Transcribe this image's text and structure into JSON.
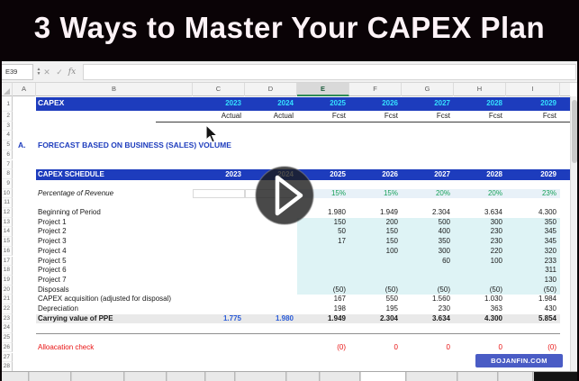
{
  "video": {
    "title": "3 Ways to Master Your CAPEX Plan"
  },
  "formula_bar": {
    "name_box": "E39",
    "icons": {
      "cancel": "✕",
      "enter": "✓",
      "fx": "fx"
    },
    "formula_value": ""
  },
  "columns": {
    "headers": [
      "A",
      "B",
      "C",
      "D",
      "E",
      "F",
      "G",
      "H",
      "I"
    ],
    "selected": "E"
  },
  "sheet": {
    "row_count": 28,
    "years": [
      "2023",
      "2024",
      "2025",
      "2026",
      "2027",
      "2028",
      "2029"
    ],
    "banner": {
      "label": "CAPEX"
    },
    "subheader": [
      "Actual",
      "Actual",
      "Fcst",
      "Fcst",
      "Fcst",
      "Fcst",
      "Fcst"
    ],
    "section": {
      "index": "A.",
      "title": "FORECAST BASED ON BUSINESS (SALES) VOLUME"
    },
    "schedule_banner": {
      "label": "CAPEX SCHEDULE"
    },
    "rows": [
      {
        "row": 10,
        "style": "pct",
        "label": "Percentage of Revenue",
        "values": [
          "",
          "",
          "15%",
          "15%",
          "20%",
          "20%",
          "23%"
        ]
      },
      {
        "row": 12,
        "style": "plain",
        "label": "Beginning of Period",
        "values": [
          "",
          "",
          "1.980",
          "1.949",
          "2.304",
          "3.634",
          "4.300"
        ]
      },
      {
        "row": 13,
        "style": "cyan",
        "label": "Project 1",
        "values": [
          "",
          "",
          "150",
          "200",
          "500",
          "300",
          "350"
        ]
      },
      {
        "row": 14,
        "style": "cyan",
        "label": "Project 2",
        "values": [
          "",
          "",
          "50",
          "150",
          "400",
          "230",
          "345"
        ]
      },
      {
        "row": 15,
        "style": "cyan",
        "label": "Project 3",
        "values": [
          "",
          "",
          "17",
          "150",
          "350",
          "230",
          "345"
        ]
      },
      {
        "row": 16,
        "style": "cyan",
        "label": "Project 4",
        "values": [
          "",
          "",
          "",
          "100",
          "300",
          "220",
          "320"
        ]
      },
      {
        "row": 17,
        "style": "cyan",
        "label": "Project 5",
        "values": [
          "",
          "",
          "",
          "",
          "60",
          "100",
          "233"
        ]
      },
      {
        "row": 18,
        "style": "cyan",
        "label": "Project 6",
        "values": [
          "",
          "",
          "",
          "",
          "",
          "",
          "311"
        ]
      },
      {
        "row": 19,
        "style": "cyan",
        "label": "Project 7",
        "values": [
          "",
          "",
          "",
          "",
          "",
          "",
          "130"
        ]
      },
      {
        "row": 20,
        "style": "cyan",
        "label": "Disposals",
        "values": [
          "",
          "",
          "(50)",
          "(50)",
          "(50)",
          "(50)",
          "(50)"
        ]
      },
      {
        "row": 21,
        "style": "plain",
        "label": "CAPEX acquisition (adjusted for disposal)",
        "values": [
          "",
          "",
          "167",
          "550",
          "1.560",
          "1.030",
          "1.984"
        ]
      },
      {
        "row": 22,
        "style": "plain",
        "label": "Depreciation",
        "values": [
          "",
          "",
          "198",
          "195",
          "230",
          "363",
          "430"
        ]
      },
      {
        "row": 23,
        "style": "total",
        "label": "Carrying value of PPE",
        "values": [
          "1.775",
          "1.980",
          "1.949",
          "2.304",
          "3.634",
          "4.300",
          "5.854"
        ]
      },
      {
        "row": 26,
        "style": "check",
        "label": "Alloacation check",
        "values": [
          "",
          "",
          "(0)",
          "0",
          "0",
          "0",
          "(0)"
        ]
      }
    ]
  },
  "brand": {
    "label": "BOJANFIN.COM"
  },
  "tabs": {
    "widths": [
      32,
      46,
      58,
      46,
      42,
      32,
      56,
      36,
      44,
      50,
      56,
      44,
      38,
      54
    ],
    "active_index": 9,
    "dark_index": 13
  },
  "colors": {
    "title_bg": "#0a0306",
    "banner_blue": "#1d3cbd",
    "year_cyan": "#35e0ff",
    "section_blue": "#1d3cbd",
    "pct_green": "#17a05a",
    "pct_bg": "#e8f1f8",
    "cyan_bg": "#def3f5",
    "total_bg": "#e9e9e9",
    "total_blue": "#2a5bd7",
    "check_red": "#e81212",
    "brand_bg": "#4a5cc5",
    "tab_dark": "#141414"
  }
}
